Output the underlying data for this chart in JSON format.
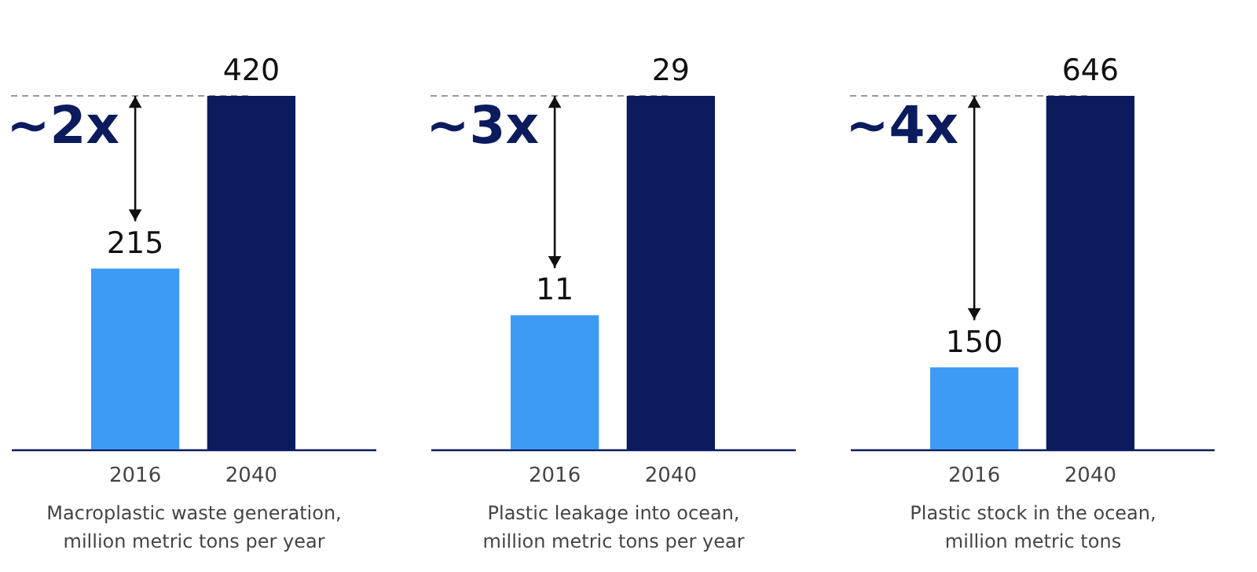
{
  "chart_data": [
    {
      "type": "bar",
      "categories": [
        "2016",
        "2040"
      ],
      "values": [
        215,
        420
      ],
      "colors": [
        "#3d9bf5",
        "#0b1b5e"
      ],
      "data_labels": true,
      "xlabel": "Macroplastic waste generation,\nmillion metric tons per year",
      "annotations": [
        "~2x"
      ]
    },
    {
      "type": "bar",
      "categories": [
        "2016",
        "2040"
      ],
      "values": [
        11,
        29
      ],
      "colors": [
        "#3d9bf5",
        "#0b1b5e"
      ],
      "data_labels": true,
      "xlabel": "Plastic leakage into ocean,\nmillion metric tons per year",
      "annotations": [
        "~3x"
      ]
    },
    {
      "type": "bar",
      "categories": [
        "2016",
        "2040"
      ],
      "values": [
        150,
        646
      ],
      "colors": [
        "#3d9bf5",
        "#0b1b5e"
      ],
      "data_labels": true,
      "xlabel": "Plastic stock in the ocean,\nmillion metric tons",
      "annotations": [
        "~4x"
      ]
    }
  ]
}
